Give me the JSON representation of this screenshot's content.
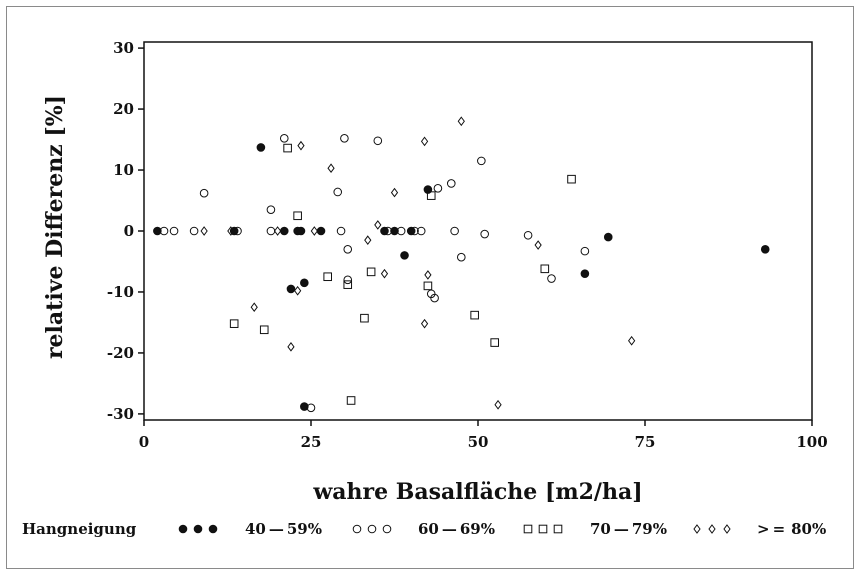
{
  "chart_data": {
    "type": "scatter",
    "title": "",
    "xlabel": "wahre Basalfläche [m2/ha]",
    "ylabel": "relative Differenz [%]",
    "xlim": [
      0,
      100
    ],
    "ylim": [
      -31,
      31
    ],
    "xticks": [
      "0",
      "25",
      "50",
      "75",
      "100"
    ],
    "yticks": [
      "30",
      "20",
      "10",
      "0",
      "-10",
      "-20",
      "-30"
    ],
    "xtick_values": [
      0,
      25,
      50,
      75,
      100
    ],
    "ytick_values": [
      30,
      20,
      10,
      0,
      -10,
      -20,
      -30
    ],
    "grid": false,
    "legend": {
      "title": "Hangneigung",
      "placement": "bottom"
    },
    "series": [
      {
        "name": "40 – 59%",
        "label": "40 — 59%",
        "marker": "filled-circle",
        "points": [
          [
            2,
            0
          ],
          [
            13.5,
            0
          ],
          [
            17.5,
            13.7
          ],
          [
            21,
            0
          ],
          [
            22,
            -9.5
          ],
          [
            23,
            0
          ],
          [
            23.5,
            0
          ],
          [
            24,
            -8.5
          ],
          [
            26.5,
            0
          ],
          [
            24,
            -28.8
          ],
          [
            36,
            0
          ],
          [
            37.5,
            0
          ],
          [
            39,
            -4
          ],
          [
            40,
            0
          ],
          [
            42.5,
            6.8
          ],
          [
            66,
            -7
          ],
          [
            69.5,
            -1
          ],
          [
            93,
            -3
          ]
        ]
      },
      {
        "name": "60 – 69%",
        "label": "60 — 69%",
        "marker": "open-circle",
        "points": [
          [
            3,
            0
          ],
          [
            4.5,
            0
          ],
          [
            7.5,
            0
          ],
          [
            9,
            6.2
          ],
          [
            14,
            0
          ],
          [
            19,
            3.5
          ],
          [
            19,
            0
          ],
          [
            21,
            15.2
          ],
          [
            25,
            -29
          ],
          [
            29,
            6.4
          ],
          [
            29.5,
            0
          ],
          [
            30,
            15.2
          ],
          [
            30.5,
            -3
          ],
          [
            30.5,
            -8
          ],
          [
            35,
            14.8
          ],
          [
            36.5,
            0
          ],
          [
            38.5,
            0
          ],
          [
            40.5,
            0
          ],
          [
            41.5,
            0
          ],
          [
            43,
            -10.3
          ],
          [
            43.5,
            -11
          ],
          [
            44,
            7
          ],
          [
            46,
            7.8
          ],
          [
            46.5,
            0
          ],
          [
            47.5,
            -4.3
          ],
          [
            50.5,
            11.5
          ],
          [
            51,
            -0.5
          ],
          [
            57.5,
            -0.7
          ],
          [
            61,
            -7.8
          ],
          [
            66,
            -3.3
          ]
        ]
      },
      {
        "name": "70 – 79%",
        "label": "70 — 79%",
        "marker": "open-square",
        "points": [
          [
            13.5,
            -15.2
          ],
          [
            18,
            -16.2
          ],
          [
            21.5,
            13.6
          ],
          [
            23,
            2.5
          ],
          [
            27.5,
            -7.5
          ],
          [
            30.5,
            -8.8
          ],
          [
            31,
            -27.8
          ],
          [
            33,
            -14.3
          ],
          [
            34,
            -6.7
          ],
          [
            42.5,
            -9
          ],
          [
            43,
            5.8
          ],
          [
            49.5,
            -13.8
          ],
          [
            52.5,
            -18.3
          ],
          [
            60,
            -6.2
          ],
          [
            64,
            8.5
          ]
        ]
      },
      {
        "name": ">= 80%",
        "label": "> =  80%",
        "marker": "open-diamond",
        "points": [
          [
            9,
            0
          ],
          [
            13,
            0
          ],
          [
            16.5,
            -12.5
          ],
          [
            20,
            0
          ],
          [
            22,
            -19
          ],
          [
            23,
            -9.8
          ],
          [
            23.5,
            14
          ],
          [
            25.5,
            0
          ],
          [
            28,
            10.3
          ],
          [
            33.5,
            -1.5
          ],
          [
            35,
            1
          ],
          [
            36,
            -7
          ],
          [
            37.5,
            6.3
          ],
          [
            42,
            14.7
          ],
          [
            42,
            -15.2
          ],
          [
            42.5,
            -7.2
          ],
          [
            47.5,
            18
          ],
          [
            53,
            -28.5
          ],
          [
            59,
            -2.3
          ],
          [
            73,
            -18
          ]
        ]
      }
    ]
  }
}
